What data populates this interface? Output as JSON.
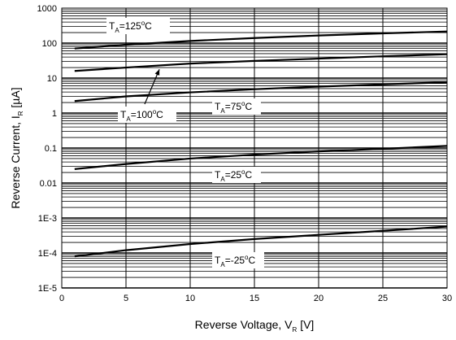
{
  "chart_data": {
    "type": "line",
    "xlabel": "Reverse Voltage, V",
    "xlabel_sub": "R",
    "xlabel_unit": " [V]",
    "ylabel": "Reverse Current, I",
    "ylabel_sub": "R",
    "ylabel_unit": " [µA]",
    "xlim": [
      0,
      30
    ],
    "ylim": [
      1e-05,
      1000
    ],
    "y_scale": "log",
    "grid": true,
    "x_ticks": [
      0,
      5,
      10,
      15,
      20,
      25,
      30
    ],
    "x_tick_labels": [
      "0",
      "5",
      "10",
      "15",
      "20",
      "25",
      "30"
    ],
    "y_ticks": [
      1e-05,
      0.0001,
      0.001,
      0.01,
      0.1,
      1,
      10,
      100,
      1000
    ],
    "y_tick_labels": [
      "1E-5",
      "1E-4",
      "1E-3",
      "0.01",
      "0.1",
      "1",
      "10",
      "100",
      "1000"
    ],
    "series": [
      {
        "name": "T_A=125°C",
        "label_main": "T",
        "label_sub": "A",
        "label_rest": "=125",
        "label_deg": "o",
        "label_end": "C",
        "x": [
          1,
          5,
          10,
          15,
          20,
          25,
          30
        ],
        "values": [
          70,
          90,
          115,
          140,
          165,
          190,
          215
        ]
      },
      {
        "name": "T_A=100°C",
        "label_main": "T",
        "label_sub": "A",
        "label_rest": "=100",
        "label_deg": "o",
        "label_end": "C",
        "x": [
          1,
          5,
          10,
          15,
          20,
          25,
          30
        ],
        "values": [
          16,
          20,
          26,
          31,
          36,
          42,
          48
        ]
      },
      {
        "name": "T_A=75°C",
        "label_main": "T",
        "label_sub": "A",
        "label_rest": "=75",
        "label_deg": "o",
        "label_end": "C",
        "x": [
          1,
          5,
          10,
          15,
          20,
          25,
          30
        ],
        "values": [
          2.2,
          3.0,
          3.9,
          4.8,
          5.7,
          6.6,
          7.6
        ]
      },
      {
        "name": "T_A=25°C",
        "label_main": "T",
        "label_sub": "A",
        "label_rest": "=25",
        "label_deg": "o",
        "label_end": "C",
        "x": [
          1,
          5,
          10,
          15,
          20,
          25,
          30
        ],
        "values": [
          0.025,
          0.035,
          0.05,
          0.065,
          0.08,
          0.095,
          0.115
        ]
      },
      {
        "name": "T_A=-25°C",
        "label_main": "T",
        "label_sub": "A",
        "label_rest": "=-25",
        "label_deg": "o",
        "label_end": "C",
        "x": [
          1,
          5,
          10,
          15,
          20,
          25,
          30
        ],
        "values": [
          8e-05,
          0.00012,
          0.00018,
          0.00025,
          0.00033,
          0.00043,
          0.00057
        ]
      }
    ]
  }
}
